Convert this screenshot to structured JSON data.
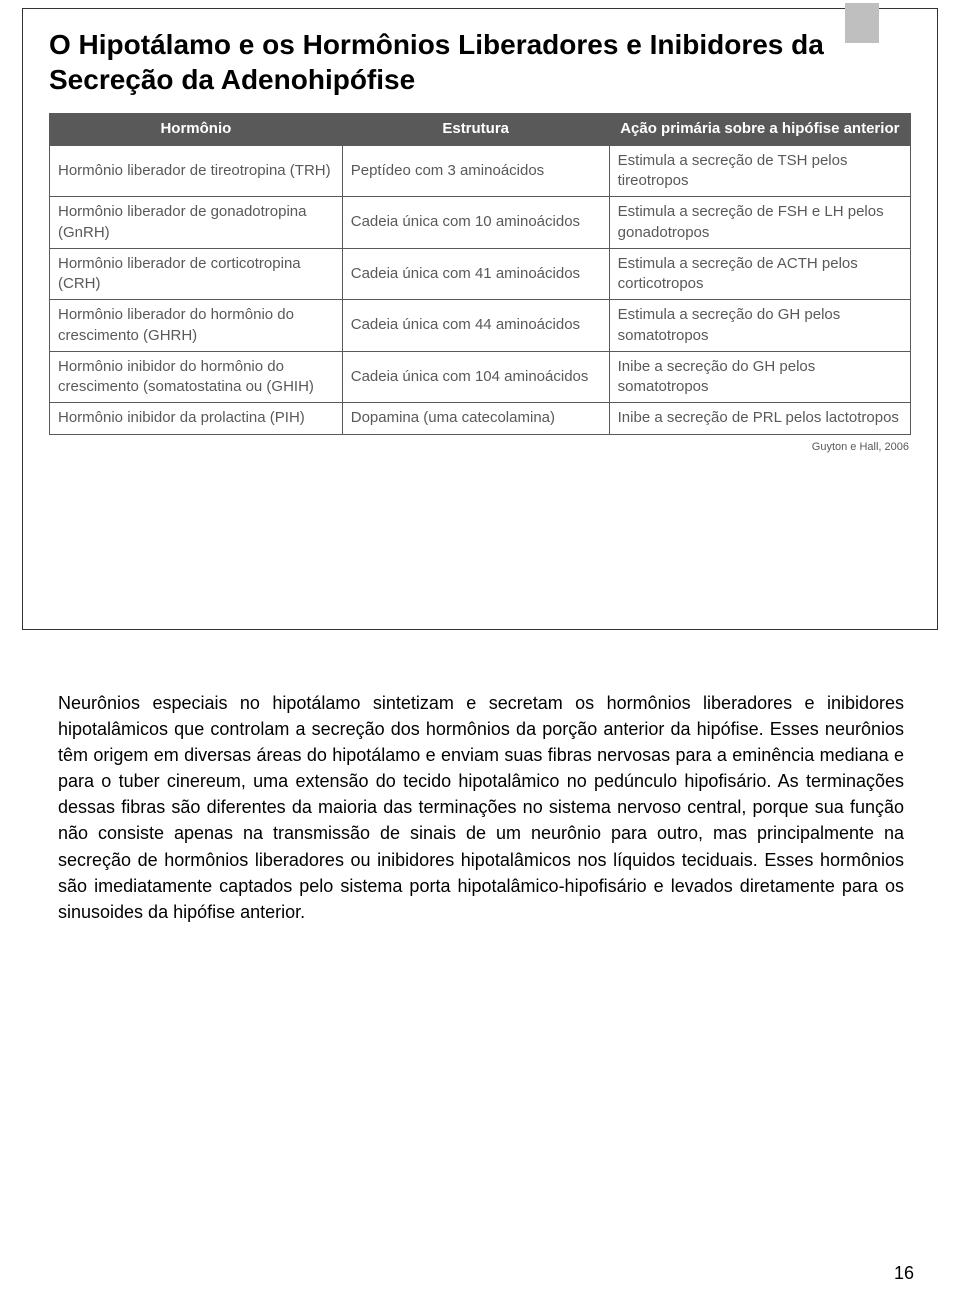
{
  "title": "O Hipotálamo e os Hormônios Liberadores e Inibidores da Secreção da Adenohipófise",
  "table": {
    "headers": {
      "col1": "Hormônio",
      "col2": "Estrutura",
      "col3": "Ação primária sobre a hipófise anterior"
    },
    "rows": [
      {
        "hormone": "Hormônio liberador de tireotropina (TRH)",
        "structure": "Peptídeo com 3 aminoácidos",
        "action": "Estimula a secreção de TSH pelos tireotropos"
      },
      {
        "hormone": "Hormônio liberador de gonadotropina (GnRH)",
        "structure": "Cadeia única com 10 aminoácidos",
        "action": "Estimula a secreção de FSH e LH pelos gonadotropos"
      },
      {
        "hormone": "Hormônio liberador de corticotropina (CRH)",
        "structure": "Cadeia única com 41 aminoácidos",
        "action": "Estimula a secreção de ACTH pelos corticotropos"
      },
      {
        "hormone": "Hormônio liberador do hormônio do crescimento (GHRH)",
        "structure": "Cadeia única com 44 aminoácidos",
        "action": "Estimula a secreção do GH pelos somatotropos"
      },
      {
        "hormone": "Hormônio inibidor do hormônio do crescimento (somatostatina ou (GHIH)",
        "structure": "Cadeia única com 104 aminoácidos",
        "action": "Inibe a secreção do GH pelos somatotropos"
      },
      {
        "hormone": "Hormônio inibidor da prolactina (PIH)",
        "structure": "Dopamina (uma catecolamina)",
        "action": "Inibe a secreção de PRL pelos lactotropos"
      }
    ]
  },
  "citation": "Guyton e Hall, 2006",
  "body_paragraph": "Neurônios especiais no hipotálamo sintetizam e secretam os hormônios liberadores e inibidores hipotalâmicos que controlam a secreção dos hormônios da porção anterior da hipófise. Esses neurônios têm origem em diversas áreas do hipotálamo e enviam suas fibras nervosas para a eminência mediana e para o tuber cinereum, uma extensão do tecido hipotalâmico no pedúnculo hipofisário. As terminações dessas fibras são diferentes da maioria das terminações no sistema nervoso central, porque sua função não consiste apenas na transmissão de sinais de um neurônio para outro, mas principalmente na secreção de hormônios liberadores ou inibidores hipotalâmicos nos líquidos teciduais. Esses hormônios são imediatamente captados pelo sistema porta hipotalâmico-hipofisário e levados diretamente para os sinusoides da hipófise anterior.",
  "page_number": "16",
  "colors": {
    "header_bg": "#595959",
    "header_text": "#ffffff",
    "cell_border": "#595959",
    "cell_text": "#595959",
    "tab_bg": "#bfbfbf",
    "frame_border": "#333333"
  }
}
